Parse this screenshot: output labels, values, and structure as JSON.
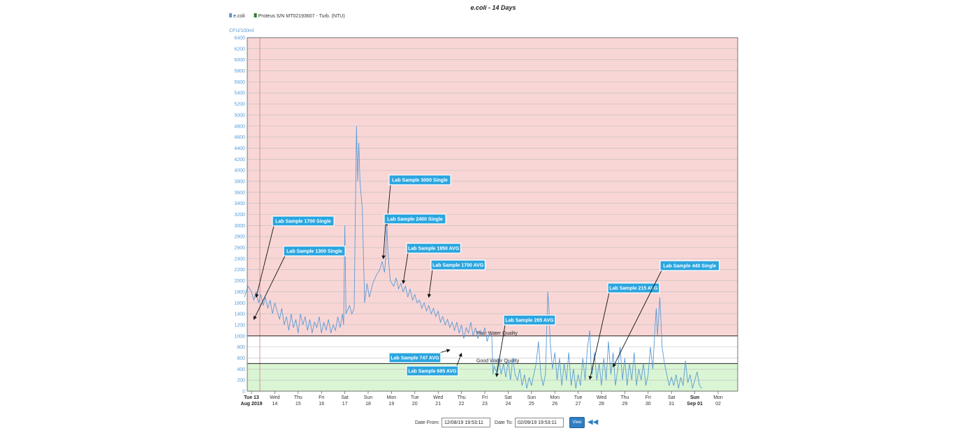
{
  "chart_data": {
    "type": "line",
    "title": "e.coli - 14 Days",
    "ylabel": "CFU/100ml",
    "ylim": [
      0,
      6400
    ],
    "yticks": [
      0,
      200,
      400,
      600,
      800,
      1000,
      1200,
      1400,
      1600,
      1800,
      2000,
      2200,
      2400,
      2600,
      2800,
      3000,
      3200,
      3400,
      3600,
      3800,
      4000,
      4200,
      4400,
      4600,
      4800,
      5000,
      5200,
      5400,
      5600,
      5800,
      6000,
      6200,
      6400
    ],
    "legend": [
      {
        "name": "e.coli",
        "color": "#5b9bd5"
      },
      {
        "name": "Proteus S/N MT02193607 - Turb. (NTU)",
        "color": "#2e7d32"
      }
    ],
    "legend_position": "top-left",
    "grid": true,
    "x_ticks": [
      {
        "top": "Tue 13",
        "bottom": "Aug 2019",
        "day": 0,
        "bold": true
      },
      {
        "top": "Wed",
        "bottom": "14",
        "day": 1
      },
      {
        "top": "Thu",
        "bottom": "15",
        "day": 2
      },
      {
        "top": "Fri",
        "bottom": "16",
        "day": 3
      },
      {
        "top": "Sat",
        "bottom": "17",
        "day": 4
      },
      {
        "top": "Sun",
        "bottom": "18",
        "day": 5
      },
      {
        "top": "Mon",
        "bottom": "19",
        "day": 6
      },
      {
        "top": "Tue",
        "bottom": "20",
        "day": 7
      },
      {
        "top": "Wed",
        "bottom": "21",
        "day": 8
      },
      {
        "top": "Thu",
        "bottom": "22",
        "day": 9
      },
      {
        "top": "Fri",
        "bottom": "23",
        "day": 10
      },
      {
        "top": "Sat",
        "bottom": "24",
        "day": 11
      },
      {
        "top": "Sun",
        "bottom": "25",
        "day": 12
      },
      {
        "top": "Mon",
        "bottom": "26",
        "day": 13
      },
      {
        "top": "Tue",
        "bottom": "27",
        "day": 14
      },
      {
        "top": "Wed",
        "bottom": "28",
        "day": 15
      },
      {
        "top": "Thu",
        "bottom": "29",
        "day": 16
      },
      {
        "top": "Fri",
        "bottom": "30",
        "day": 17
      },
      {
        "top": "Sat",
        "bottom": "31",
        "day": 18
      },
      {
        "top": "Sun",
        "bottom": "Sep 01",
        "day": 19,
        "bold": true
      },
      {
        "top": "Mon",
        "bottom": "02",
        "day": 20
      }
    ],
    "thresholds": [
      {
        "label": "Poor Water Quality",
        "value": 1000
      },
      {
        "label": "Good Water Quality",
        "value": 500
      }
    ],
    "bands": [
      {
        "from": 1000,
        "to": 6400,
        "color": "#f9d6d6"
      },
      {
        "from": 500,
        "to": 1000,
        "color": "#ffffff"
      },
      {
        "from": 0,
        "to": 500,
        "color": "#d9f5d3"
      }
    ],
    "series": [
      {
        "name": "e.coli",
        "color": "#5b9bd5",
        "points": [
          [
            -0.3,
            1700
          ],
          [
            -0.15,
            1900
          ],
          [
            0,
            1800
          ],
          [
            0.1,
            1650
          ],
          [
            0.2,
            1800
          ],
          [
            0.3,
            1600
          ],
          [
            0.4,
            1750
          ],
          [
            0.5,
            1550
          ],
          [
            0.6,
            1700
          ],
          [
            0.7,
            1500
          ],
          [
            0.8,
            1650
          ],
          [
            0.9,
            1400
          ],
          [
            1.0,
            1600
          ],
          [
            1.1,
            1450
          ],
          [
            1.2,
            1300
          ],
          [
            1.3,
            1500
          ],
          [
            1.4,
            1200
          ],
          [
            1.5,
            1350
          ],
          [
            1.6,
            1100
          ],
          [
            1.7,
            1400
          ],
          [
            1.8,
            1150
          ],
          [
            1.9,
            1300
          ],
          [
            2.0,
            1050
          ],
          [
            2.1,
            1400
          ],
          [
            2.2,
            1200
          ],
          [
            2.3,
            1350
          ],
          [
            2.4,
            1100
          ],
          [
            2.5,
            1300
          ],
          [
            2.6,
            1050
          ],
          [
            2.7,
            1250
          ],
          [
            2.8,
            1150
          ],
          [
            2.9,
            1350
          ],
          [
            3.0,
            1050
          ],
          [
            3.1,
            1250
          ],
          [
            3.2,
            1100
          ],
          [
            3.3,
            1300
          ],
          [
            3.4,
            1050
          ],
          [
            3.5,
            1200
          ],
          [
            3.6,
            1100
          ],
          [
            3.7,
            1350
          ],
          [
            3.8,
            1150
          ],
          [
            3.9,
            1400
          ],
          [
            3.95,
            1200
          ],
          [
            4.0,
            3000
          ],
          [
            4.05,
            1400
          ],
          [
            4.2,
            1550
          ],
          [
            4.3,
            1400
          ],
          [
            4.4,
            1500
          ],
          [
            4.5,
            4800
          ],
          [
            4.55,
            3800
          ],
          [
            4.6,
            4500
          ],
          [
            4.65,
            3800
          ],
          [
            4.75,
            3300
          ],
          [
            4.85,
            1600
          ],
          [
            4.95,
            1950
          ],
          [
            5.05,
            1700
          ],
          [
            5.2,
            1950
          ],
          [
            5.35,
            2100
          ],
          [
            5.5,
            2200
          ],
          [
            5.6,
            2350
          ],
          [
            5.7,
            2150
          ],
          [
            5.75,
            2400
          ],
          [
            5.8,
            3000
          ],
          [
            5.85,
            2500
          ],
          [
            5.95,
            2000
          ],
          [
            6.1,
            1900
          ],
          [
            6.2,
            2050
          ],
          [
            6.3,
            1850
          ],
          [
            6.4,
            1950
          ],
          [
            6.5,
            1800
          ],
          [
            6.6,
            1900
          ],
          [
            6.7,
            1700
          ],
          [
            6.8,
            1850
          ],
          [
            6.9,
            1650
          ],
          [
            7.0,
            1750
          ],
          [
            7.1,
            1600
          ],
          [
            7.2,
            1650
          ],
          [
            7.3,
            1500
          ],
          [
            7.4,
            1600
          ],
          [
            7.5,
            1450
          ],
          [
            7.6,
            1550
          ],
          [
            7.7,
            1400
          ],
          [
            7.8,
            1500
          ],
          [
            7.9,
            1350
          ],
          [
            8.0,
            1450
          ],
          [
            8.1,
            1250
          ],
          [
            8.2,
            1350
          ],
          [
            8.3,
            1200
          ],
          [
            8.4,
            1300
          ],
          [
            8.5,
            1150
          ],
          [
            8.6,
            1250
          ],
          [
            8.7,
            1100
          ],
          [
            8.8,
            1250
          ],
          [
            8.9,
            1050
          ],
          [
            9.0,
            1200
          ],
          [
            9.1,
            950
          ],
          [
            9.2,
            1150
          ],
          [
            9.3,
            1050
          ],
          [
            9.4,
            1250
          ],
          [
            9.5,
            1000
          ],
          [
            9.6,
            1150
          ],
          [
            9.7,
            950
          ],
          [
            9.8,
            1100
          ],
          [
            9.9,
            1000
          ],
          [
            10.0,
            1150
          ],
          [
            10.1,
            900
          ],
          [
            10.2,
            1050
          ],
          [
            10.3,
            1000
          ],
          [
            10.35,
            300
          ],
          [
            10.4,
            450
          ],
          [
            10.5,
            350
          ],
          [
            10.6,
            600
          ],
          [
            10.7,
            300
          ],
          [
            10.8,
            500
          ],
          [
            10.9,
            250
          ],
          [
            11.0,
            550
          ],
          [
            11.1,
            200
          ],
          [
            11.2,
            600
          ],
          [
            11.3,
            300
          ],
          [
            11.4,
            200
          ],
          [
            11.5,
            400
          ],
          [
            11.6,
            100
          ],
          [
            11.7,
            300
          ],
          [
            11.8,
            50
          ],
          [
            11.9,
            250
          ],
          [
            12.0,
            100
          ],
          [
            12.1,
            300
          ],
          [
            12.2,
            500
          ],
          [
            12.3,
            900
          ],
          [
            12.4,
            300
          ],
          [
            12.5,
            100
          ],
          [
            12.6,
            300
          ],
          [
            12.7,
            1800
          ],
          [
            12.75,
            1500
          ],
          [
            12.8,
            900
          ],
          [
            12.9,
            400
          ],
          [
            13.0,
            700
          ],
          [
            13.1,
            200
          ],
          [
            13.2,
            600
          ],
          [
            13.3,
            100
          ],
          [
            13.4,
            500
          ],
          [
            13.5,
            200
          ],
          [
            13.6,
            700
          ],
          [
            13.7,
            100
          ],
          [
            13.8,
            400
          ],
          [
            13.9,
            50
          ],
          [
            14.0,
            300
          ],
          [
            14.1,
            100
          ],
          [
            14.2,
            600
          ],
          [
            14.3,
            200
          ],
          [
            14.4,
            800
          ],
          [
            14.5,
            1100
          ],
          [
            14.55,
            500
          ],
          [
            14.6,
            300
          ],
          [
            14.7,
            700
          ],
          [
            14.8,
            200
          ],
          [
            14.9,
            500
          ],
          [
            15.0,
            100
          ],
          [
            15.1,
            600
          ],
          [
            15.2,
            200
          ],
          [
            15.3,
            900
          ],
          [
            15.4,
            300
          ],
          [
            15.5,
            700
          ],
          [
            15.6,
            100
          ],
          [
            15.7,
            400
          ],
          [
            15.8,
            800
          ],
          [
            15.9,
            200
          ],
          [
            16.0,
            600
          ],
          [
            16.1,
            100
          ],
          [
            16.2,
            500
          ],
          [
            16.3,
            200
          ],
          [
            16.4,
            700
          ],
          [
            16.5,
            100
          ],
          [
            16.6,
            400
          ],
          [
            16.7,
            200
          ],
          [
            16.8,
            500
          ],
          [
            16.9,
            100
          ],
          [
            17.0,
            300
          ],
          [
            17.1,
            800
          ],
          [
            17.2,
            400
          ],
          [
            17.3,
            1200
          ],
          [
            17.35,
            1500
          ],
          [
            17.4,
            1000
          ],
          [
            17.5,
            1700
          ],
          [
            17.6,
            800
          ],
          [
            17.7,
            500
          ],
          [
            17.8,
            300
          ],
          [
            17.9,
            100
          ],
          [
            18.0,
            250
          ],
          [
            18.1,
            100
          ],
          [
            18.2,
            300
          ],
          [
            18.3,
            50
          ],
          [
            18.4,
            250
          ],
          [
            18.5,
            100
          ],
          [
            18.6,
            550
          ],
          [
            18.7,
            150
          ],
          [
            18.8,
            300
          ],
          [
            18.9,
            50
          ],
          [
            19.0,
            200
          ],
          [
            19.1,
            350
          ],
          [
            19.2,
            100
          ],
          [
            19.3,
            50
          ]
        ]
      }
    ],
    "annotations": [
      {
        "label": "Lab Sample 1700 Single",
        "target_day": 0.2,
        "target_value": 1700
      },
      {
        "label": "Lab Sample 1300 Single",
        "target_day": 0.1,
        "target_value": 1300
      },
      {
        "label": "Lab Sample 3000 Single",
        "target_day": 5.8,
        "target_value": 3000
      },
      {
        "label": "Lab Sample 2400 Single",
        "target_day": 5.65,
        "target_value": 2400
      },
      {
        "label": "Lab Sample 1950 AVG",
        "target_day": 6.5,
        "target_value": 1950
      },
      {
        "label": "Lab Sample 1700 AVG",
        "target_day": 7.6,
        "target_value": 1700
      },
      {
        "label": "Lab Sample 747 AVG",
        "target_day": 8.5,
        "target_value": 747
      },
      {
        "label": "Lab Sample 685 AVG",
        "target_day": 9.0,
        "target_value": 685
      },
      {
        "label": "Lab Sample 265 AVG",
        "target_day": 10.5,
        "target_value": 265
      },
      {
        "label": "Lab Sample 215 AVG",
        "target_day": 14.5,
        "target_value": 215
      },
      {
        "label": "Lab Sample 440 Single",
        "target_day": 15.5,
        "target_value": 440
      }
    ]
  },
  "controls": {
    "date_from_label": "Date From:",
    "date_from_value": "12/08/19 19:53:11",
    "date_to_label": "Date To:",
    "date_to_value": "02/09/19 19:53:11",
    "view_label": "View",
    "back_icon": "rewind-icon"
  }
}
